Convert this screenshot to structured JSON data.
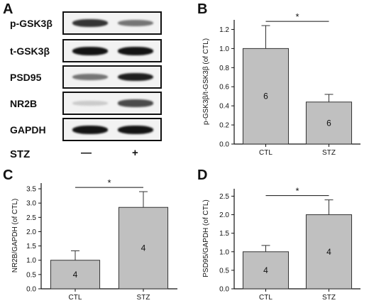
{
  "panel_a": {
    "letter": "A",
    "blots": [
      {
        "label": "p-GSK3β",
        "band_intensity": [
          0.85,
          0.55
        ]
      },
      {
        "label": "t-GSK3β",
        "band_intensity": [
          1.0,
          1.0
        ]
      },
      {
        "label": "PSD95",
        "band_intensity": [
          0.55,
          0.95
        ]
      },
      {
        "label": "NR2B",
        "band_intensity": [
          0.15,
          0.75
        ]
      },
      {
        "label": "GAPDH",
        "band_intensity": [
          1.0,
          1.0
        ]
      }
    ],
    "condition_label": "STZ",
    "lane_labels": [
      "—",
      "+"
    ]
  },
  "chart_data": [
    {
      "panel": "B",
      "type": "bar",
      "categories": [
        "CTL",
        "STZ"
      ],
      "values": [
        1.0,
        0.44
      ],
      "errors": [
        0.24,
        0.08
      ],
      "bar_labels": [
        "6",
        "6"
      ],
      "ylabel": "p-GSK3β/t-GSK3β (of CTL)",
      "ylim": [
        0,
        1.3
      ],
      "yticks": [
        "0.0",
        "0.2",
        "0.4",
        "0.6",
        "0.8",
        "1.0",
        "1.2"
      ],
      "significance": "*"
    },
    {
      "panel": "C",
      "type": "bar",
      "categories": [
        "CTL",
        "STZ"
      ],
      "values": [
        1.0,
        2.85
      ],
      "errors": [
        0.33,
        0.55
      ],
      "bar_labels": [
        "4",
        "4"
      ],
      "ylabel": "NR2B/GAPDH (of CTL)",
      "ylim": [
        0,
        3.7
      ],
      "yticks": [
        "0.0",
        "0.5",
        "1.0",
        "1.5",
        "2.0",
        "2.5",
        "3.0",
        "3.5"
      ],
      "significance": "*"
    },
    {
      "panel": "D",
      "type": "bar",
      "categories": [
        "CTL",
        "STZ"
      ],
      "values": [
        1.0,
        2.0
      ],
      "errors": [
        0.17,
        0.4
      ],
      "bar_labels": [
        "4",
        "4"
      ],
      "ylabel": "PSD95/GAPDH (of CTL)",
      "ylim": [
        0,
        2.7
      ],
      "yticks": [
        "0.0",
        "0.5",
        "1.0",
        "1.5",
        "2.0",
        "2.5"
      ],
      "significance": "*"
    }
  ],
  "colors": {
    "bar_fill": "#c0c0c0",
    "bar_stroke": "#333333",
    "axis": "#111111"
  }
}
